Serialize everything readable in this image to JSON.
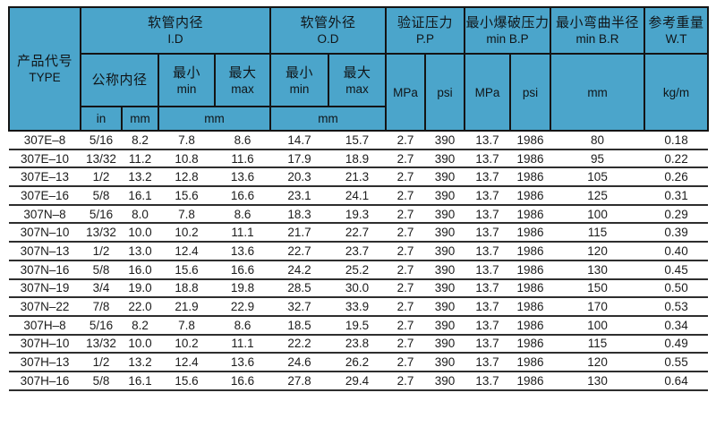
{
  "table": {
    "header": {
      "type_zh": "产品代号",
      "type_en": "TYPE",
      "id_zh": "软管内径",
      "id_en": "I.D",
      "od_zh": "软管外径",
      "od_en": "O.D",
      "pp_zh": "验证压力",
      "pp_en": "P.P",
      "bp_zh": "最小爆破压力",
      "bp_en": "min B.P",
      "br_zh": "最小弯曲半径",
      "br_en": "min B.R",
      "wt_zh": "参考重量",
      "wt_en": "W.T",
      "nominal_zh": "公称内径",
      "min_zh": "最小",
      "min_en": "min",
      "max_zh": "最大",
      "max_en": "max",
      "unit_in": "in",
      "unit_mm": "mm",
      "unit_mpa": "MPa",
      "unit_psi": "psi",
      "unit_kgm": "kg/m"
    },
    "column_keys": [
      "type",
      "nominal-in",
      "nominal-mm",
      "id-min-mm",
      "id-max-mm",
      "od-min-mm",
      "od-max-mm",
      "pp-mpa",
      "pp-psi",
      "bp-mpa",
      "bp-psi",
      "br-mm",
      "wt-kgm"
    ],
    "rows": [
      [
        "307E–8",
        "5/16",
        "8.2",
        "7.8",
        "8.6",
        "14.7",
        "15.7",
        "2.7",
        "390",
        "13.7",
        "1986",
        "80",
        "0.18"
      ],
      [
        "307E–10",
        "13/32",
        "11.2",
        "10.8",
        "11.6",
        "17.9",
        "18.9",
        "2.7",
        "390",
        "13.7",
        "1986",
        "95",
        "0.22"
      ],
      [
        "307E–13",
        "1/2",
        "13.2",
        "12.8",
        "13.6",
        "20.3",
        "21.3",
        "2.7",
        "390",
        "13.7",
        "1986",
        "105",
        "0.26"
      ],
      [
        "307E–16",
        "5/8",
        "16.1",
        "15.6",
        "16.6",
        "23.1",
        "24.1",
        "2.7",
        "390",
        "13.7",
        "1986",
        "125",
        "0.31"
      ],
      [
        "307N–8",
        "5/16",
        "8.0",
        "7.8",
        "8.6",
        "18.3",
        "19.3",
        "2.7",
        "390",
        "13.7",
        "1986",
        "100",
        "0.29"
      ],
      [
        "307N–10",
        "13/32",
        "10.0",
        "10.2",
        "11.1",
        "21.7",
        "22.7",
        "2.7",
        "390",
        "13.7",
        "1986",
        "115",
        "0.39"
      ],
      [
        "307N–13",
        "1/2",
        "13.0",
        "12.4",
        "13.6",
        "22.7",
        "23.7",
        "2.7",
        "390",
        "13.7",
        "1986",
        "120",
        "0.40"
      ],
      [
        "307N–16",
        "5/8",
        "16.0",
        "15.6",
        "16.6",
        "24.2",
        "25.2",
        "2.7",
        "390",
        "13.7",
        "1986",
        "130",
        "0.45"
      ],
      [
        "307N–19",
        "3/4",
        "19.0",
        "18.8",
        "19.8",
        "28.5",
        "30.0",
        "2.7",
        "390",
        "13.7",
        "1986",
        "150",
        "0.50"
      ],
      [
        "307N–22",
        "7/8",
        "22.0",
        "21.9",
        "22.9",
        "32.7",
        "33.9",
        "2.7",
        "390",
        "13.7",
        "1986",
        "170",
        "0.53"
      ],
      [
        "307H–8",
        "5/16",
        "8.2",
        "7.8",
        "8.6",
        "18.5",
        "19.5",
        "2.7",
        "390",
        "13.7",
        "1986",
        "100",
        "0.34"
      ],
      [
        "307H–10",
        "13/32",
        "10.0",
        "10.2",
        "11.1",
        "22.2",
        "23.8",
        "2.7",
        "390",
        "13.7",
        "1986",
        "115",
        "0.49"
      ],
      [
        "307H–13",
        "1/2",
        "13.2",
        "12.4",
        "13.6",
        "24.6",
        "26.2",
        "2.7",
        "390",
        "13.7",
        "1986",
        "120",
        "0.55"
      ],
      [
        "307H–16",
        "5/8",
        "16.1",
        "15.6",
        "16.6",
        "27.8",
        "29.4",
        "2.7",
        "390",
        "13.7",
        "1986",
        "130",
        "0.64"
      ]
    ]
  },
  "colors": {
    "header_bg": "#4BA5CB",
    "header_border": "#141414",
    "row_line": "#2E2E2E",
    "text": "#1B1B1B",
    "page_bg": "#FFFFFF"
  }
}
